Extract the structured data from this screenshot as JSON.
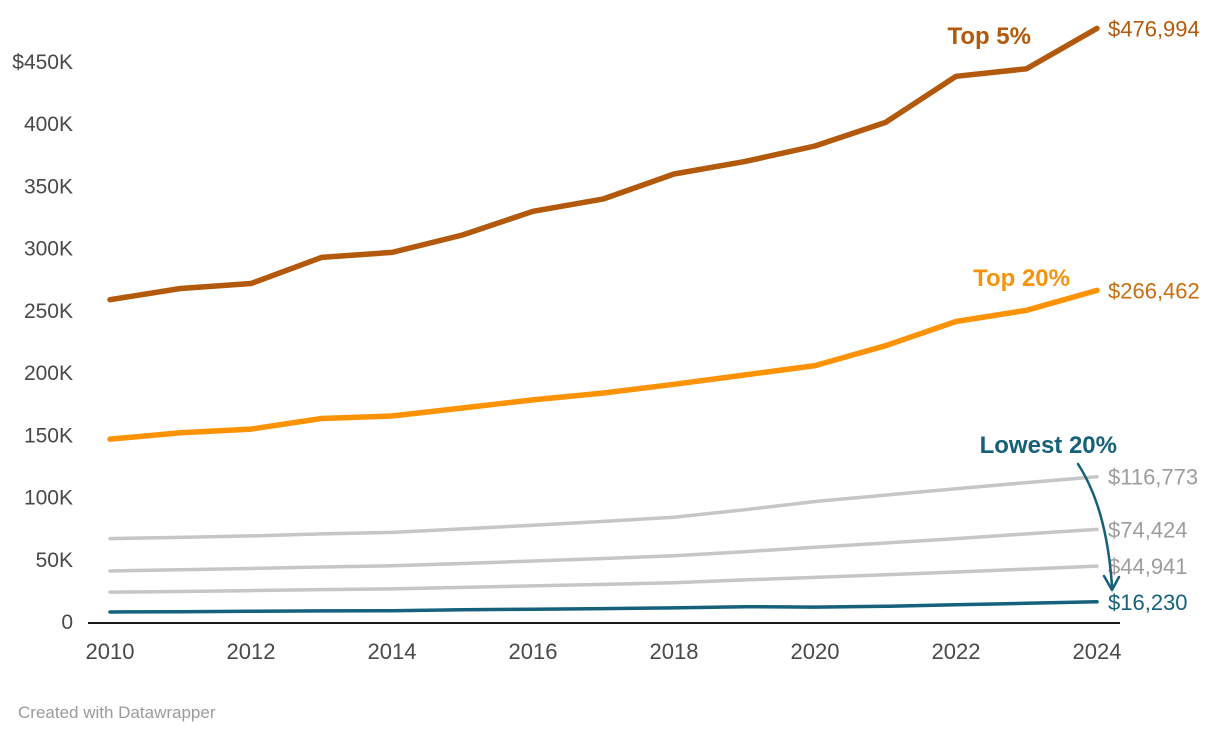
{
  "chart_data": {
    "type": "line",
    "title": "",
    "xlabel": "",
    "ylabel": "",
    "grid": "off",
    "legend": "inline-labels",
    "x": [
      2010,
      2011,
      2012,
      2013,
      2014,
      2015,
      2016,
      2017,
      2018,
      2019,
      2020,
      2021,
      2022,
      2023,
      2024
    ],
    "x_tick_labels": [
      "2010",
      "2012",
      "2014",
      "2016",
      "2018",
      "2020",
      "2022",
      "2024"
    ],
    "y_ticks": [
      {
        "label": "$450K",
        "value": 450000
      },
      {
        "label": "400K",
        "value": 400000
      },
      {
        "label": "350K",
        "value": 350000
      },
      {
        "label": "300K",
        "value": 300000
      },
      {
        "label": "250K",
        "value": 250000
      },
      {
        "label": "200K",
        "value": 200000
      },
      {
        "label": "150K",
        "value": 150000
      },
      {
        "label": "100K",
        "value": 100000
      },
      {
        "label": "50K",
        "value": 50000
      },
      {
        "label": "0",
        "value": 0
      }
    ],
    "ylim": [
      0,
      480000
    ],
    "series": [
      {
        "key": "fourth-quintile",
        "name": "",
        "values": [
          67000,
          68000,
          69200,
          70800,
          72000,
          74800,
          77800,
          80800,
          84200,
          90200,
          96800,
          102000,
          107000,
          112000,
          116773
        ],
        "line_color": "#c6c6c6",
        "line_width": 3.5,
        "end_label": "$116,773",
        "end_label_color": "#9d9d9d"
      },
      {
        "key": "middle-quintile",
        "name": "",
        "values": [
          41000,
          42000,
          43000,
          44200,
          45200,
          47000,
          49000,
          51000,
          53200,
          56500,
          60000,
          63500,
          67000,
          70800,
          74424
        ],
        "line_color": "#c6c6c6",
        "line_width": 3.5,
        "end_label": "$74,424",
        "end_label_color": "#9d9d9d"
      },
      {
        "key": "second-quintile",
        "name": "",
        "values": [
          24000,
          24500,
          25200,
          26000,
          26600,
          27800,
          29000,
          30200,
          31500,
          33800,
          35800,
          38000,
          40200,
          42500,
          44941
        ],
        "line_color": "#c6c6c6",
        "line_width": 3.5,
        "end_label": "$44,941",
        "end_label_color": "#9d9d9d"
      },
      {
        "key": "lowest-20",
        "name": "Lowest 20%",
        "values": [
          8000,
          8300,
          8600,
          8900,
          9100,
          9800,
          10300,
          10800,
          11300,
          12300,
          12000,
          12600,
          13800,
          15000,
          16230
        ],
        "line_color": "#15607a",
        "line_width": 3.5,
        "end_label": "$16,230",
        "end_label_color": "#15607a",
        "name_label_color": "#15607a",
        "label_pos": {
          "x": 1117,
          "y": 453,
          "anchor": "end"
        }
      },
      {
        "key": "top-20",
        "name": "Top 20%",
        "values": [
          147000,
          152000,
          155000,
          163500,
          165500,
          172000,
          178500,
          184000,
          191000,
          198500,
          206000,
          222000,
          241500,
          250500,
          266462
        ],
        "line_color": "#fd9302",
        "line_width": 5.5,
        "end_label": "$266,462",
        "end_label_color": "#c96d12",
        "name_label_color": "#f7930a",
        "label_pos": {
          "x": 1070,
          "y": 286,
          "anchor": "end"
        }
      },
      {
        "key": "top-5",
        "name": "Top 5%",
        "values": [
          259000,
          268000,
          272000,
          293000,
          297000,
          311000,
          330000,
          340000,
          360000,
          370000,
          382500,
          401500,
          438500,
          444500,
          476994
        ],
        "line_color": "#b3590b",
        "line_width": 5.5,
        "end_label": "$476,994",
        "end_label_color": "#b3590b",
        "name_label_color": "#b3590b",
        "label_pos": {
          "x": 1031,
          "y": 44,
          "anchor": "end"
        }
      }
    ],
    "axis_text_color": "#494949",
    "axis_line_color": "#191919",
    "annotation_arrow_color": "#15607a"
  },
  "footer": {
    "credit": "Created with Datawrapper"
  }
}
